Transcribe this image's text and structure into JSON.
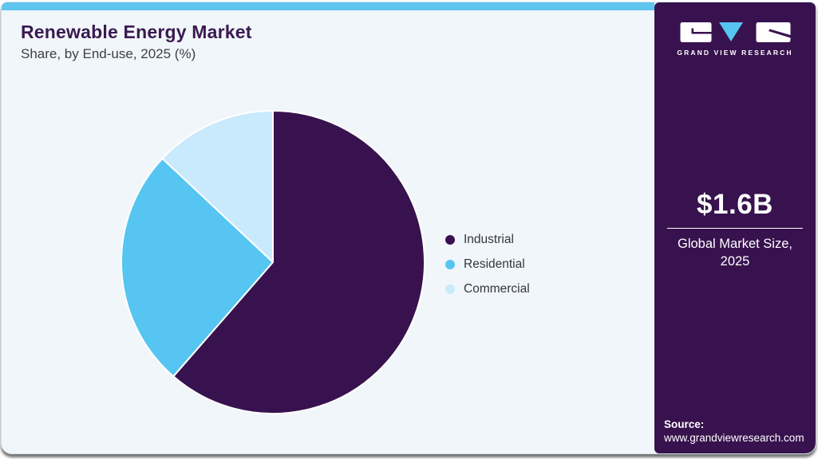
{
  "header": {
    "title": "Renewable Energy Market",
    "subtitle": "Share, by End-use, 2025 (%)"
  },
  "chart_data": {
    "type": "pie",
    "title": "Renewable Energy Market Share, by End-use, 2025 (%)",
    "categories": [
      "Industrial",
      "Residential",
      "Commercial"
    ],
    "values": [
      61.4,
      25.6,
      13.0
    ],
    "unit": "%",
    "colors": [
      "#38124E",
      "#56C5F1",
      "#C9E9FC"
    ],
    "start_angle": "12-o-clock",
    "direction": "clockwise",
    "legend_position": "right",
    "slice_separator_color": "#FFFFFF"
  },
  "sidebar": {
    "logo": {
      "brand": "GRAND VIEW RESEARCH"
    },
    "market_size": {
      "value": "$1.6B",
      "caption": "Global Market Size, 2025"
    },
    "source": {
      "label": "Source:",
      "url": "www.grandviewresearch.com"
    }
  },
  "colors": {
    "topbar": "#5FC5EF",
    "card_background": "#F1F6FA",
    "sidebar_background": "#38124E",
    "title_text": "#3A1A50",
    "body_text": "#3E3E4A",
    "legend_text": "#35353F"
  }
}
